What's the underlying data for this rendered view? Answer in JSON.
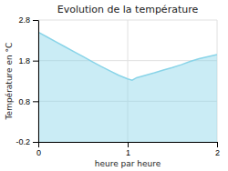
{
  "chart_data": {
    "type": "area",
    "title": "Evolution de la température",
    "xlabel": "heure par heure",
    "ylabel": "Température en °C",
    "x": [
      0,
      0.1,
      0.2,
      0.3,
      0.4,
      0.5,
      0.6,
      0.7,
      0.8,
      0.9,
      1.0,
      1.05,
      1.1,
      1.2,
      1.3,
      1.4,
      1.5,
      1.6,
      1.7,
      1.8,
      1.9,
      2.0
    ],
    "values": [
      2.5,
      2.38,
      2.26,
      2.14,
      2.02,
      1.9,
      1.78,
      1.66,
      1.55,
      1.44,
      1.35,
      1.32,
      1.38,
      1.44,
      1.5,
      1.57,
      1.63,
      1.7,
      1.78,
      1.85,
      1.9,
      1.95
    ],
    "color": "#89d4e8",
    "xlim": [
      0,
      2
    ],
    "ylim": [
      -0.2,
      2.8
    ],
    "xticks": [
      0,
      1,
      2
    ],
    "yticks": [
      -0.2,
      0.8,
      1.8,
      2.8
    ],
    "grid": true
  }
}
